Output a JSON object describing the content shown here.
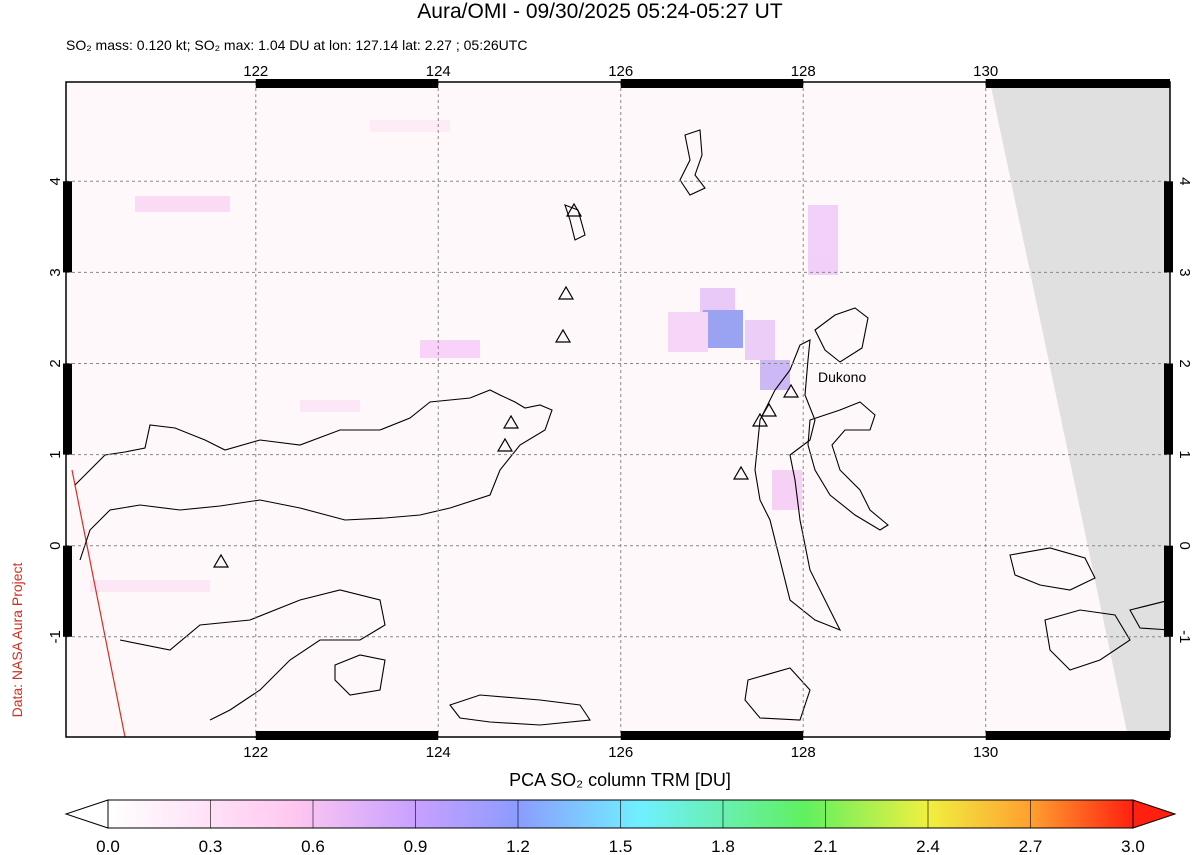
{
  "title": "Aura/OMI - 09/30/2025 05:24-05:27 UT",
  "subtitle": "SO₂ mass: 0.120 kt; SO₂ max: 1.04 DU at lon: 127.14 lat: 2.27 ; 05:26UTC",
  "map": {
    "xlim": [
      119.92,
      132.02
    ],
    "xticks": [
      122,
      124,
      126,
      128,
      130
    ],
    "ylim": [
      -2.1,
      5.09
    ],
    "yticks": [
      -1,
      0,
      1,
      2,
      3,
      4
    ],
    "grid": true
  },
  "annotations": [
    "Dukono"
  ],
  "credit": "Data: NASA Aura Project",
  "colorbar": {
    "label": "PCA SO₂ column TRM [DU]",
    "lim": [
      0,
      3
    ],
    "ticks": [
      {
        "value": 0,
        "label": "0.0"
      },
      0.3,
      0.6,
      0.9,
      1.2,
      1.5,
      1.8,
      2.1,
      2.4,
      2.7,
      {
        "value": 3,
        "label": "3.0"
      }
    ]
  }
}
